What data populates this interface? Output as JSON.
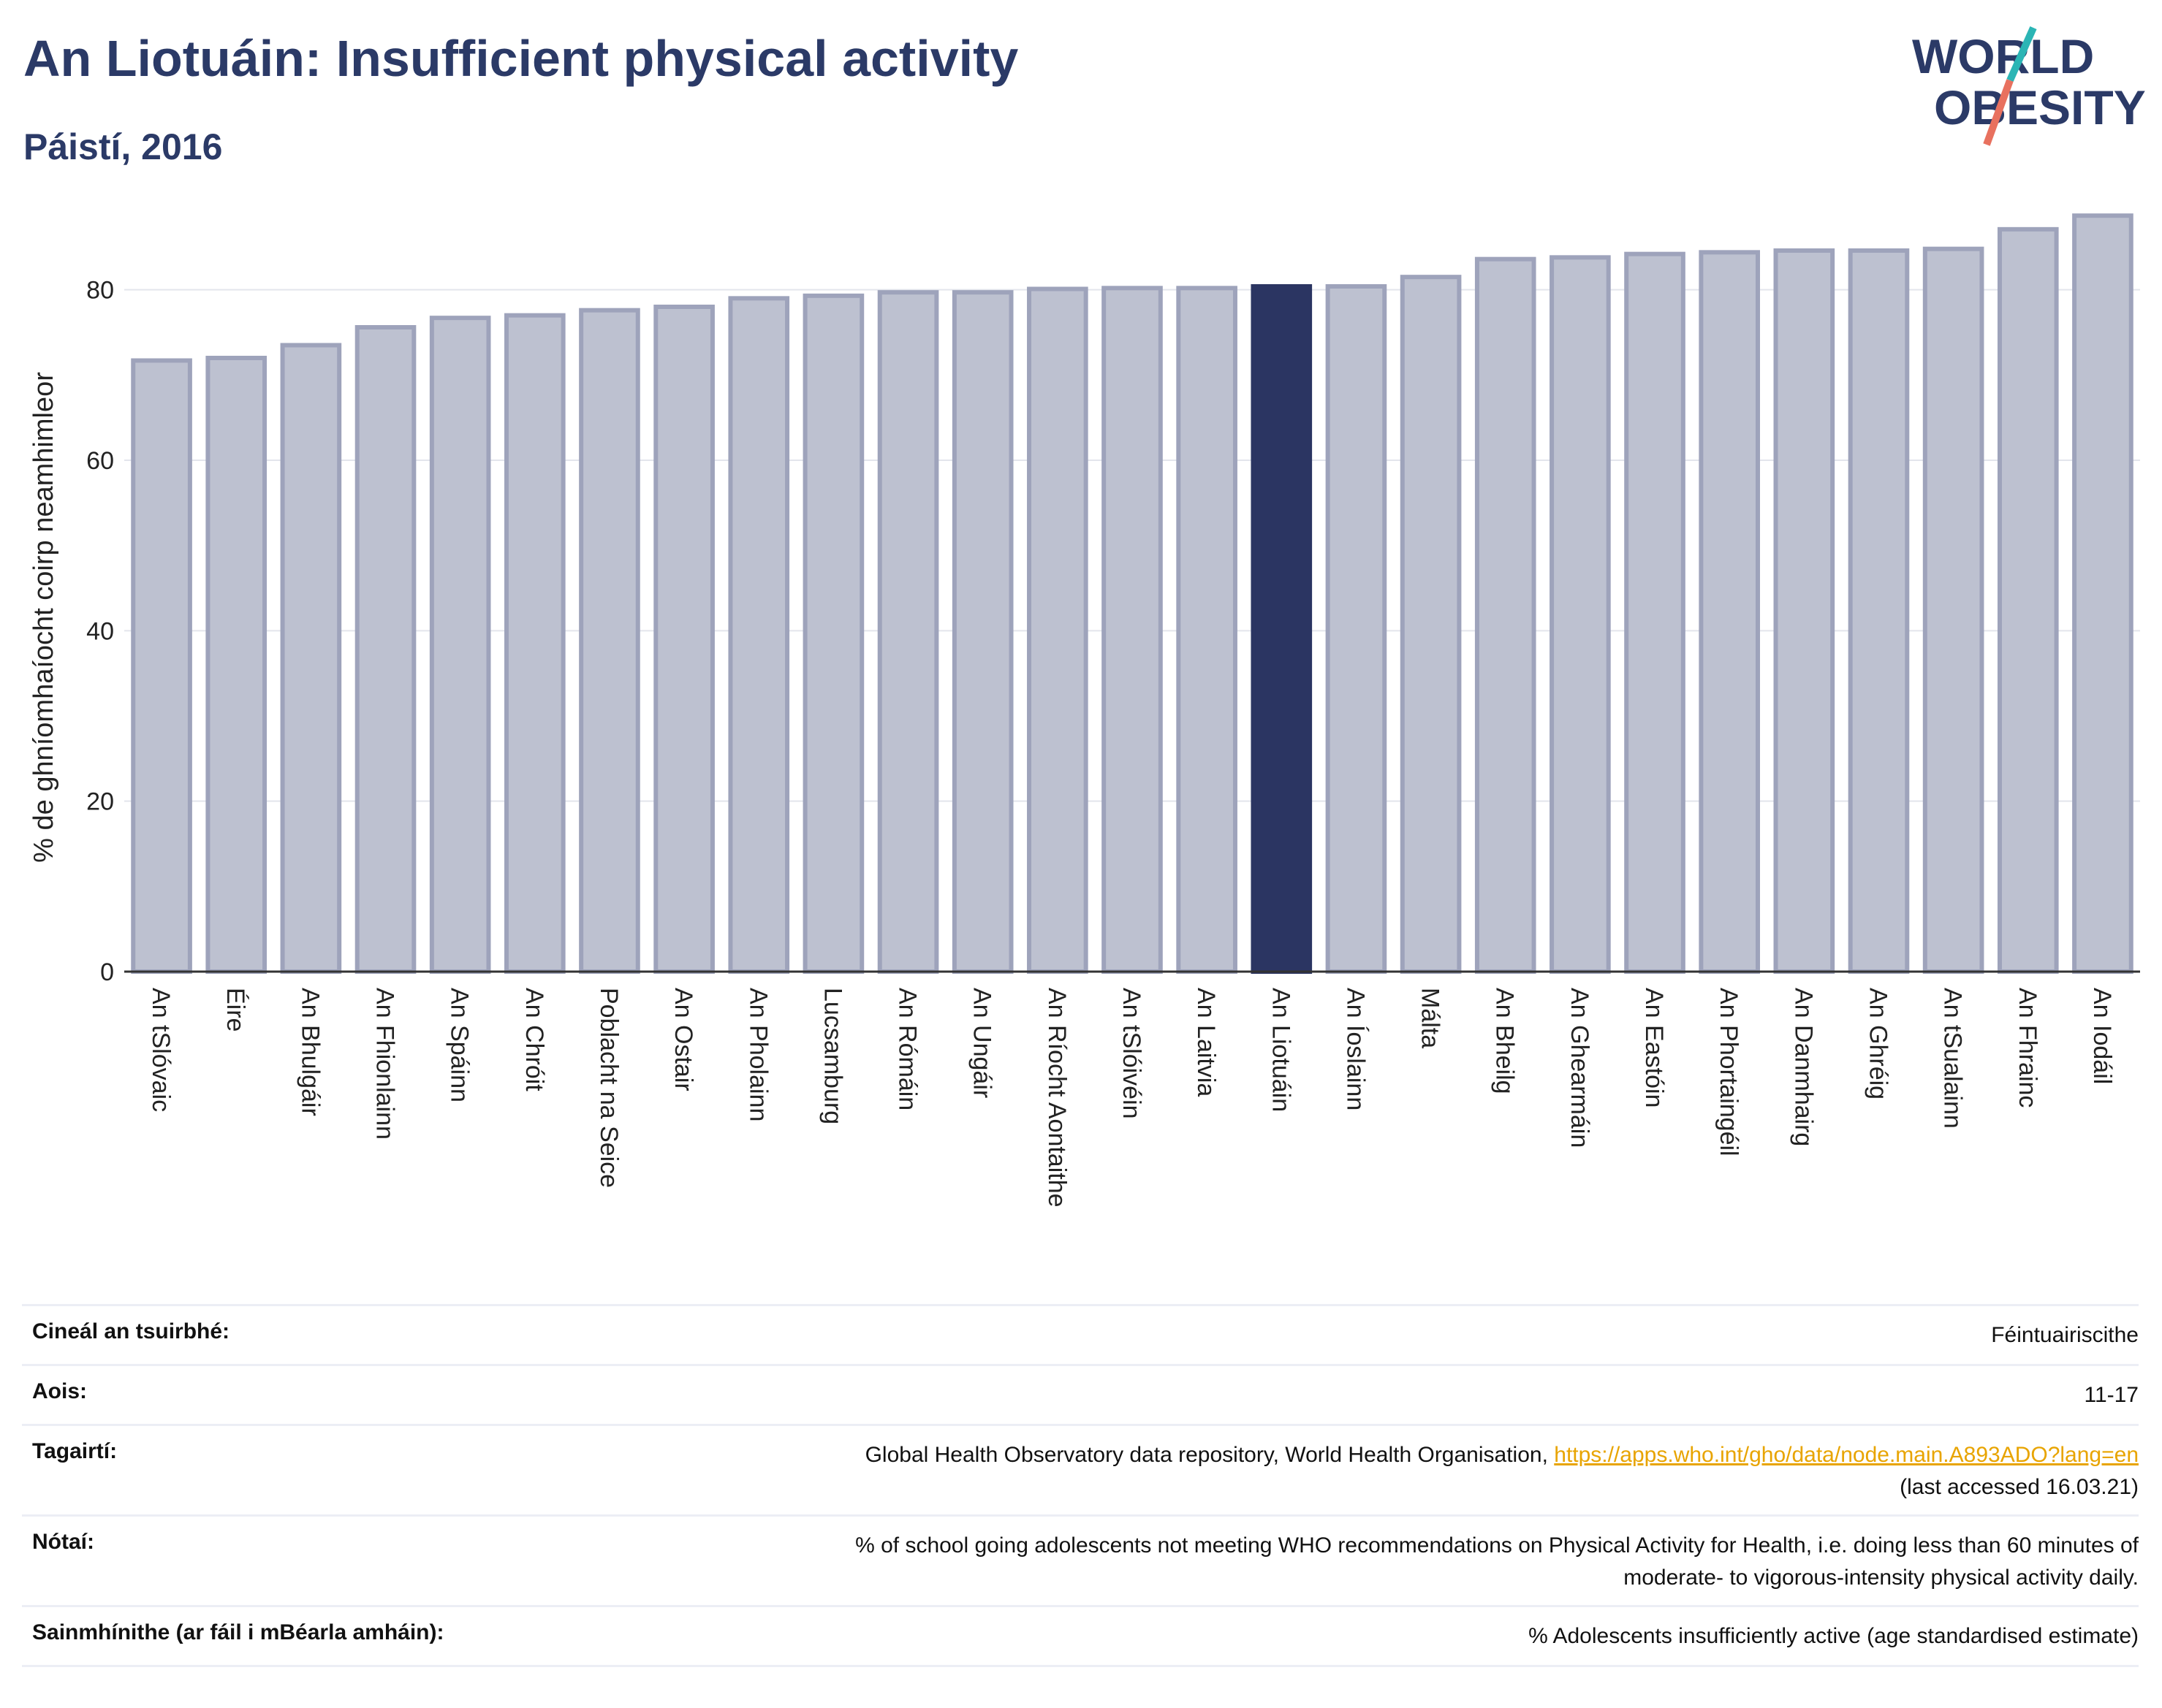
{
  "header": {
    "title": "An Liotuáin: Insufficient physical activity",
    "subtitle": "Páistí, 2016",
    "logo_line1": "WORLD",
    "logo_line2": "OBESITY"
  },
  "colors": {
    "bar": "#bdc1d0",
    "bar_stroke": "#9ea3bb",
    "highlight": "#2b3562",
    "title": "#2b3a67",
    "logo_teal": "#2bb5b5",
    "logo_coral": "#e8715f",
    "link": "#e8a400"
  },
  "chart_data": {
    "type": "bar",
    "title": "",
    "xlabel": "",
    "ylabel": "% de ghníomhaíocht coirp neamhimleor",
    "ylim": [
      0,
      90
    ],
    "yticks": [
      0,
      20,
      40,
      60,
      80
    ],
    "grid": true,
    "highlight": "An Liotuáin",
    "categories": [
      "An tSlóvaic",
      "Éire",
      "An Bhulgáir",
      "An Fhionlainn",
      "An Spáinn",
      "An Chróit",
      "Poblacht na Seice",
      "An Ostair",
      "An Pholainn",
      "Lucsamburg",
      "An Rómáin",
      "An Ungáir",
      "An Ríocht Aontaithe",
      "An tSlóivéin",
      "An Laitvia",
      "An Liotuáin",
      "An Íoslainn",
      "Málta",
      "An Bheilg",
      "An Ghearmáin",
      "An Eastóin",
      "An Phortaingéil",
      "An Danmhairg",
      "An Ghréig",
      "An tSualainn",
      "An Fhrainc",
      "An Iodáil"
    ],
    "values": [
      71.7,
      72.0,
      73.5,
      75.6,
      76.7,
      77.0,
      77.6,
      78.0,
      79.0,
      79.3,
      79.7,
      79.7,
      80.1,
      80.2,
      80.2,
      80.4,
      80.4,
      81.5,
      83.6,
      83.8,
      84.2,
      84.4,
      84.6,
      84.6,
      84.8,
      87.1,
      88.7
    ]
  },
  "info": {
    "rows": [
      {
        "label": "Cineál an tsuirbhé:",
        "value": "Féintuairiscithe"
      },
      {
        "label": "Aois:",
        "value": "11-17"
      },
      {
        "label": "Tagairtí:",
        "value": "Global Health Observatory data repository, World Health Organisation,",
        "link": "https://apps.who.int/gho/data/node.main.A893ADO?lang=en",
        "value2": "(last accessed 16.03.21)"
      },
      {
        "label": "Nótaí:",
        "value": "% of school going adolescents not meeting WHO recommendations on Physical Activity for Health, i.e. doing less than 60 minutes of",
        "value2": "moderate- to vigorous-intensity physical activity daily."
      },
      {
        "label": "Sainmhínithe (ar fáil i mBéarla amháin):",
        "value": "% Adolescents insufficiently active (age standardised estimate)"
      }
    ]
  }
}
